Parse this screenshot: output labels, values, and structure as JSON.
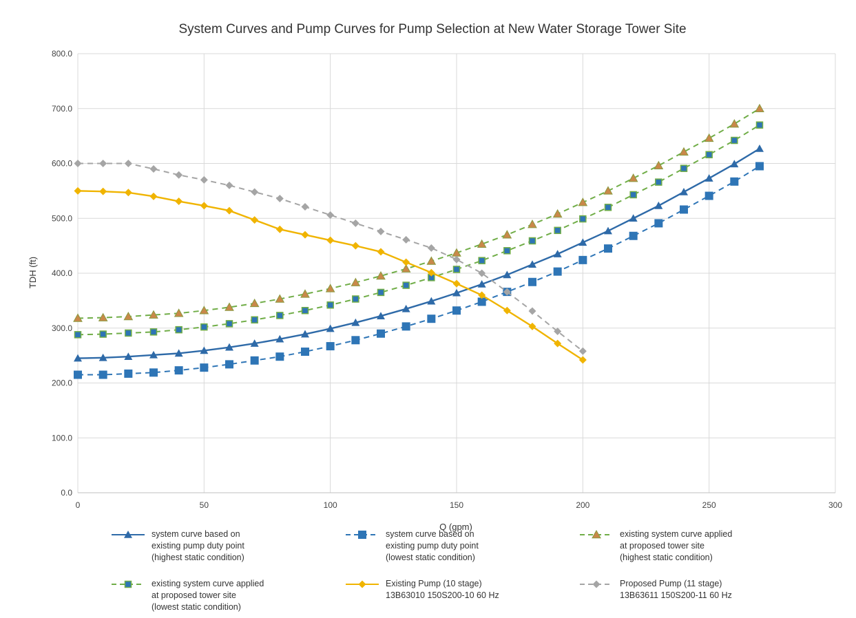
{
  "chart_data": {
    "type": "line",
    "title": "System Curves and Pump Curves for Pump Selection at New Water Storage Tower Site",
    "xlabel": "Q (gpm)",
    "ylabel": "TDH (ft)",
    "xlim": [
      0,
      300
    ],
    "ylim": [
      0,
      800
    ],
    "xticks": [
      "0",
      "50",
      "100",
      "150",
      "200",
      "250",
      "300"
    ],
    "yticks": [
      "0.0",
      "100.0",
      "200.0",
      "300.0",
      "400.0",
      "500.0",
      "600.0",
      "700.0",
      "800.0"
    ],
    "grid": true,
    "legend_position": "bottom",
    "series": [
      {
        "name": "system curve based on existing pump duty point (highest static condition)",
        "legend_lines": [
          "system curve based on",
          "existing pump duty point",
          "(highest static condition)"
        ],
        "color": "#2e6aa8",
        "dash": "solid",
        "marker": "triangle",
        "x": [
          0,
          10,
          20,
          30,
          40,
          50,
          60,
          70,
          80,
          90,
          100,
          110,
          120,
          130,
          140,
          150,
          160,
          170,
          180,
          190,
          200,
          210,
          220,
          230,
          240,
          250,
          260,
          270
        ],
        "y": [
          245,
          246,
          248,
          251,
          254,
          259,
          265,
          272,
          280,
          289,
          299,
          310,
          322,
          335,
          349,
          364,
          380,
          397,
          416,
          435,
          456,
          477,
          500,
          523,
          548,
          573,
          599,
          627
        ]
      },
      {
        "name": "system curve based on existing pump duty point (lowest static condition)",
        "legend_lines": [
          "system curve based on",
          "existing pump duty point",
          "(lowest static condition)"
        ],
        "color": "#2e75b6",
        "dash": "dashed",
        "marker": "square",
        "x": [
          0,
          10,
          20,
          30,
          40,
          50,
          60,
          70,
          80,
          90,
          100,
          110,
          120,
          130,
          140,
          150,
          160,
          170,
          180,
          190,
          200,
          210,
          220,
          230,
          240,
          250,
          260,
          270
        ],
        "y": [
          215,
          215,
          217,
          219,
          223,
          228,
          234,
          241,
          248,
          257,
          267,
          278,
          290,
          303,
          317,
          332,
          348,
          366,
          384,
          403,
          424,
          445,
          468,
          491,
          516,
          541,
          567,
          595
        ]
      },
      {
        "name": "existing system curve applied at proposed tower site (highest static condition)",
        "legend_lines": [
          "existing system curve applied",
          "at proposed tower site",
          "(highest static condition)"
        ],
        "color": "#70ad47",
        "dash": "dashed",
        "marker": "triangle-orange",
        "x": [
          0,
          10,
          20,
          30,
          40,
          50,
          60,
          70,
          80,
          90,
          100,
          110,
          120,
          130,
          140,
          150,
          160,
          170,
          180,
          190,
          200,
          210,
          220,
          230,
          240,
          250,
          260,
          270
        ],
        "y": [
          318,
          319,
          321,
          324,
          327,
          332,
          338,
          345,
          353,
          362,
          372,
          383,
          395,
          408,
          422,
          437,
          453,
          470,
          489,
          508,
          529,
          550,
          573,
          596,
          621,
          646,
          672,
          700
        ]
      },
      {
        "name": "existing system curve applied at proposed tower site (lowest static condition)",
        "legend_lines": [
          "existing system curve applied",
          "at proposed tower site",
          "(lowest static condition)"
        ],
        "color": "#70ad47",
        "dash": "dashed",
        "marker": "square-green",
        "x": [
          0,
          10,
          20,
          30,
          40,
          50,
          60,
          70,
          80,
          90,
          100,
          110,
          120,
          130,
          140,
          150,
          160,
          170,
          180,
          190,
          200,
          210,
          220,
          230,
          240,
          250,
          260,
          270
        ],
        "y": [
          288,
          289,
          291,
          293,
          297,
          302,
          308,
          315,
          323,
          332,
          342,
          353,
          365,
          378,
          392,
          407,
          423,
          441,
          459,
          478,
          499,
          520,
          543,
          566,
          591,
          616,
          642,
          670
        ]
      },
      {
        "name": "Existing Pump (10 stage) 13B63010 150S200-10 60 Hz",
        "legend_lines": [
          "Existing Pump (10 stage)",
          "13B63010 150S200-10 60 Hz"
        ],
        "color": "#f0b400",
        "dash": "solid",
        "marker": "diamond-yellow",
        "x": [
          0,
          10,
          20,
          30,
          40,
          50,
          60,
          70,
          80,
          90,
          100,
          110,
          120,
          130,
          140,
          150,
          160,
          170,
          180,
          190,
          200
        ],
        "y": [
          550,
          549,
          547,
          540,
          531,
          523,
          514,
          497,
          480,
          470,
          460,
          450,
          439,
          420,
          401,
          381,
          360,
          332,
          303,
          272,
          242
        ]
      },
      {
        "name": "Proposed Pump (11 stage) 13B63611 150S200-11 60 Hz",
        "legend_lines": [
          "Proposed Pump (11 stage)",
          "13B63611 150S200-11 60 Hz"
        ],
        "color": "#a5a5a5",
        "dash": "dashed",
        "marker": "diamond-gray",
        "x": [
          0,
          10,
          20,
          30,
          40,
          50,
          60,
          70,
          80,
          90,
          100,
          110,
          120,
          130,
          140,
          150,
          160,
          170,
          180,
          190,
          200
        ],
        "y": [
          600,
          600,
          600,
          590,
          579,
          570,
          560,
          548,
          536,
          521,
          506,
          491,
          476,
          461,
          446,
          425,
          400,
          366,
          331,
          294,
          258
        ]
      }
    ]
  }
}
